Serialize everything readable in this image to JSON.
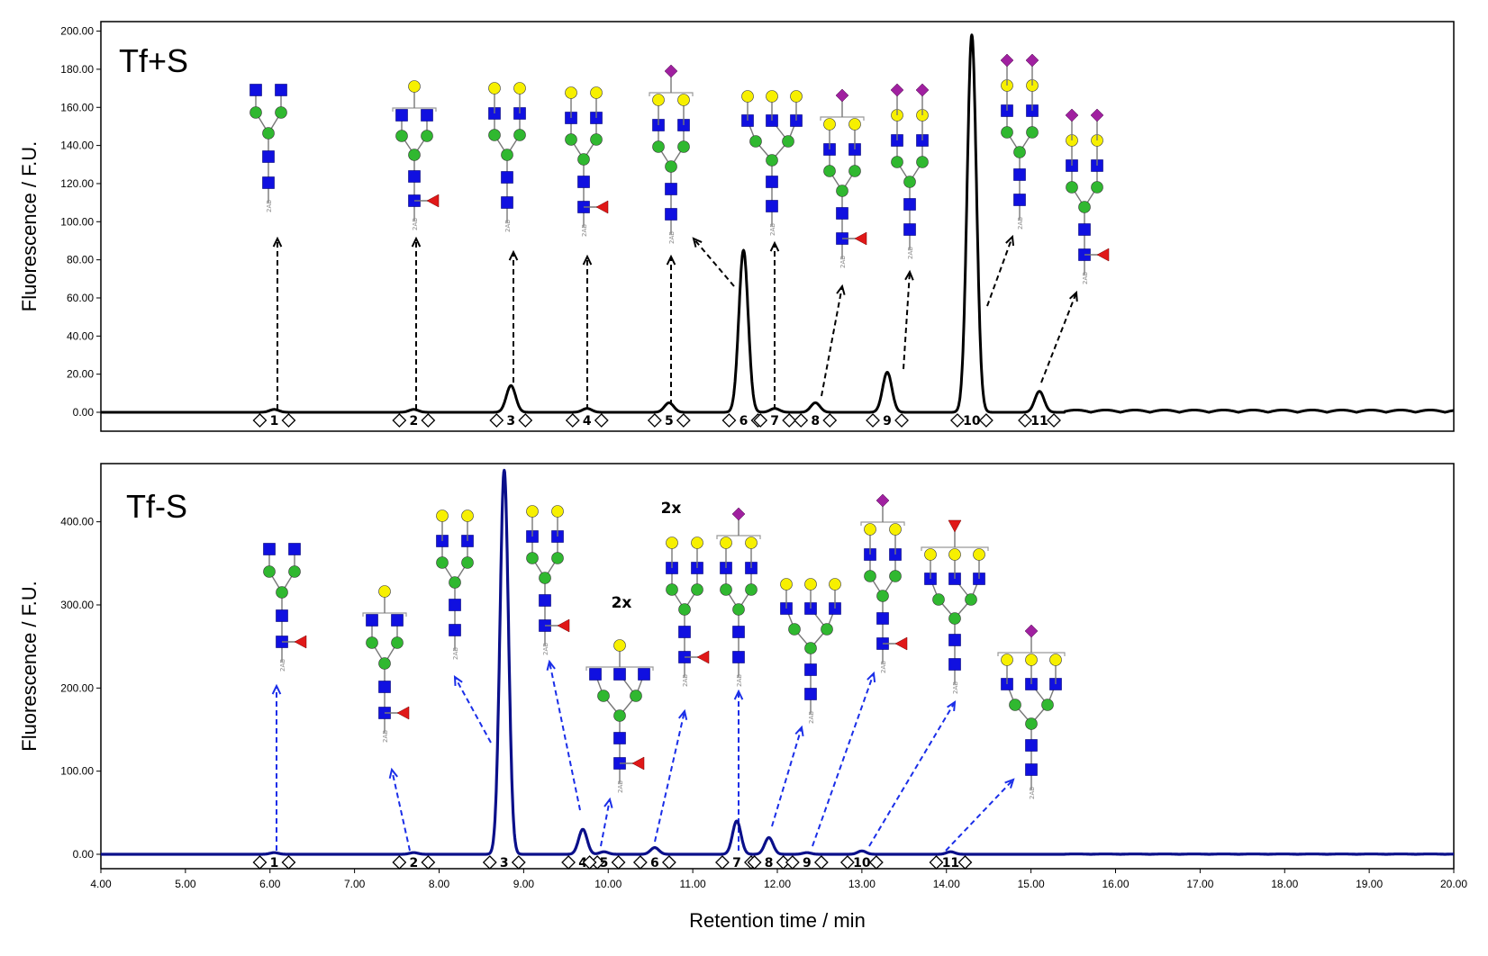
{
  "chart_data": {
    "type": "line",
    "xlabel": "Retention time / min",
    "xlim": [
      4.0,
      20.0
    ],
    "x_ticks": [
      "4.00",
      "5.00",
      "6.00",
      "7.00",
      "8.00",
      "9.00",
      "10.00",
      "11.00",
      "12.00",
      "13.00",
      "14.00",
      "15.00",
      "16.00",
      "17.00",
      "18.00",
      "19.00",
      "20.00"
    ],
    "panels": [
      {
        "id": "top",
        "title": "Tf+S",
        "ylabel": "Fluorescence / F.U.",
        "ylim": [
          -10,
          205
        ],
        "y_ticks": [
          "0.00",
          "20.00",
          "40.00",
          "60.00",
          "80.00",
          "100.00",
          "120.00",
          "140.00",
          "160.00",
          "180.00",
          "200.00"
        ],
        "line_color": "#000000",
        "arrow_color": "#000000",
        "peaks": [
          {
            "label": "1",
            "rt": 6.05,
            "height": 1.5
          },
          {
            "label": "2",
            "rt": 7.7,
            "height": 1.5
          },
          {
            "label": "3",
            "rt": 8.85,
            "height": 14
          },
          {
            "label": "4",
            "rt": 9.75,
            "height": 2
          },
          {
            "label": "5",
            "rt": 10.72,
            "height": 5
          },
          {
            "label": "6",
            "rt": 11.6,
            "height": 85
          },
          {
            "label": "7",
            "rt": 11.97,
            "height": 2
          },
          {
            "label": "8",
            "rt": 12.45,
            "height": 5
          },
          {
            "label": "9",
            "rt": 13.3,
            "height": 21
          },
          {
            "label": "10",
            "rt": 14.3,
            "height": 198
          },
          {
            "label": "11",
            "rt": 15.1,
            "height": 11
          }
        ]
      },
      {
        "id": "bottom",
        "title": "Tf-S",
        "ylabel": "Fluorescence / F.U.",
        "ylim": [
          -15,
          470
        ],
        "y_ticks": [
          "0.00",
          "100.00",
          "200.00",
          "300.00",
          "400.00"
        ],
        "line_color": "#0a0f8a",
        "arrow_color": "#1a2ee8",
        "annotations": [
          "2x",
          "2x"
        ],
        "peaks": [
          {
            "label": "1",
            "rt": 6.05,
            "height": 2
          },
          {
            "label": "2",
            "rt": 7.7,
            "height": 2
          },
          {
            "label": "3",
            "rt": 8.77,
            "height": 462
          },
          {
            "label": "4",
            "rt": 9.7,
            "height": 30
          },
          {
            "label": "5",
            "rt": 9.95,
            "height": 3
          },
          {
            "label": "6",
            "rt": 10.55,
            "height": 8
          },
          {
            "label": "7",
            "rt": 11.52,
            "height": 40
          },
          {
            "label": "8",
            "rt": 11.9,
            "height": 20
          },
          {
            "label": "9",
            "rt": 12.35,
            "height": 2
          },
          {
            "label": "10",
            "rt": 13.0,
            "height": 4
          },
          {
            "label": "11",
            "rt": 14.05,
            "height": 3
          }
        ]
      }
    ]
  }
}
